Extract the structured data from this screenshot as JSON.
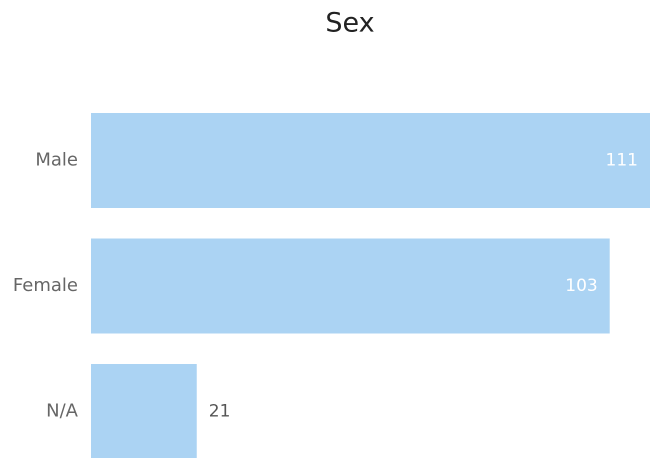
{
  "chart_data": {
    "type": "bar",
    "orientation": "horizontal",
    "title": "Sex",
    "categories": [
      "Male",
      "Female",
      "N/A"
    ],
    "values": [
      111,
      103,
      21
    ],
    "color": "#abd3f3"
  }
}
